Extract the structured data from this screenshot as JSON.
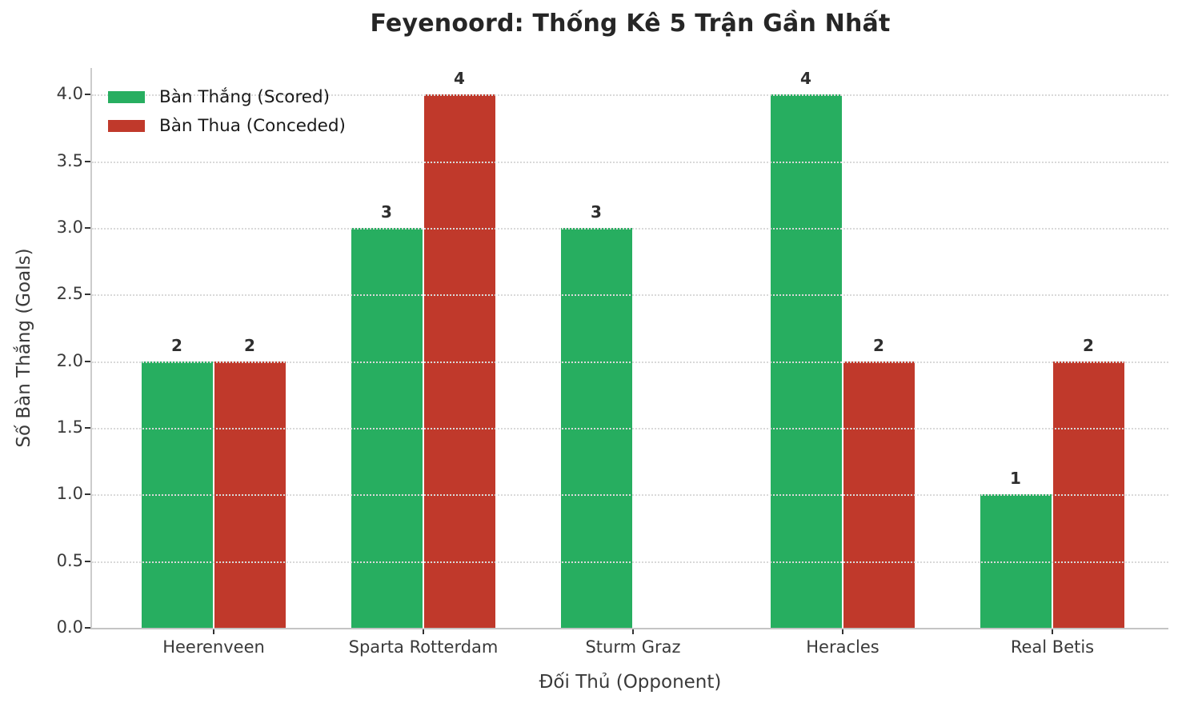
{
  "chart_data": {
    "type": "bar",
    "title": "Feyenoord: Thống Kê 5 Trận Gần Nhất",
    "categories": [
      "Heerenveen",
      "Sparta Rotterdam",
      "Sturm Graz",
      "Heracles",
      "Real Betis"
    ],
    "series": [
      {
        "name": "Bàn Thắng (Scored)",
        "color": "#27ae60",
        "values": [
          2,
          3,
          3,
          4,
          1
        ]
      },
      {
        "name": "Bàn Thua (Conceded)",
        "color": "#c0392b",
        "values": [
          2,
          4,
          0,
          2,
          2
        ]
      }
    ],
    "xlabel": "Đối Thủ (Opponent)",
    "ylabel": "Số Bàn Thắng (Goals)",
    "ylim": [
      0,
      4.2
    ],
    "yticks": [
      0.0,
      0.5,
      1.0,
      1.5,
      2.0,
      2.5,
      3.0,
      3.5,
      4.0
    ],
    "ytick_labels": [
      "0.0",
      "0.5",
      "1.0",
      "1.5",
      "2.0",
      "2.5",
      "3.0",
      "3.5",
      "4.0"
    ],
    "grid": {
      "axis": "y",
      "style": "dotted",
      "color": "#d9d9d9"
    },
    "legend": {
      "position": "upper left"
    },
    "bar_value_labels": {
      "show": true,
      "hide_zero": true
    },
    "value_labels": {
      "scored": [
        "2",
        "3",
        "3",
        "4",
        "1"
      ],
      "conceded": [
        "2",
        "4",
        "",
        "2",
        "2"
      ]
    }
  }
}
